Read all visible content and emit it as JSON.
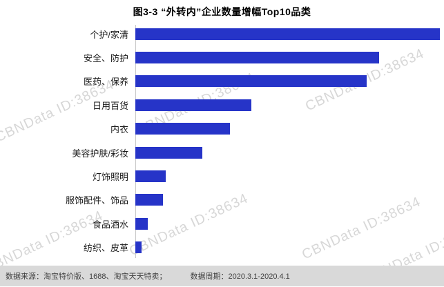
{
  "title": "图3-3 “外转内”企业数量增幅Top10品类",
  "watermark": {
    "text": "CBNData ID:38634"
  },
  "footer": {
    "source": "数据来源：淘宝特价版、1688、淘宝天天特卖；",
    "period": "数据周期：2020.3.1-2020.4.1"
  },
  "chart_data": {
    "type": "bar",
    "orientation": "horizontal",
    "title": "图3-3 “外转内”企业数量增幅Top10品类",
    "categories": [
      "个护/家清",
      "安全、防护",
      "医药、保养",
      "日用百货",
      "内衣",
      "美容护肤/彩妆",
      "灯饰照明",
      "服饰配件、饰品",
      "食品酒水",
      "纺织、皮革"
    ],
    "values": [
      100,
      80,
      76,
      38,
      31,
      22,
      10,
      9,
      4,
      2
    ],
    "value_scale": "relative to longest bar = 100 (no numeric labels shown in chart)",
    "xlim": [
      0,
      100
    ],
    "xlabel": "",
    "ylabel": "",
    "grid": false,
    "legend": "none",
    "bar_color": "#2634c8"
  }
}
